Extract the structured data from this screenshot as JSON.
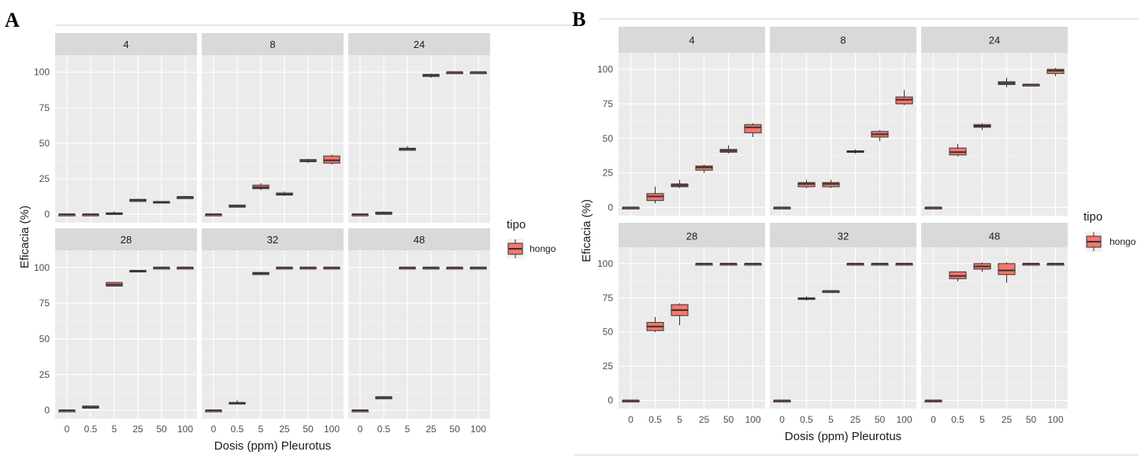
{
  "colors": {
    "fill": "#f8766d",
    "panel": "#ebebeb",
    "strip": "#d9d9d9"
  },
  "chart_data": [
    {
      "type": "boxplot",
      "panel_label": "A",
      "xlabel": "Dosis (ppm) Pleurotus",
      "ylabel": "Eficacia (%)",
      "categories": [
        "0",
        "0.5",
        "5",
        "25",
        "50",
        "100"
      ],
      "ylim": [
        -6,
        112
      ],
      "yticks": [
        0,
        25,
        50,
        75,
        100
      ],
      "grid": true,
      "legend": {
        "title": "tipo",
        "entries": [
          "hongo"
        ],
        "position": "right"
      },
      "facets": [
        {
          "label": "4",
          "boxes": [
            [
              0,
              0,
              0,
              0,
              0
            ],
            [
              0,
              0,
              0,
              0,
              0
            ],
            [
              0,
              0,
              0.5,
              1,
              2
            ],
            [
              9,
              9,
              10,
              10.5,
              11
            ],
            [
              8,
              8,
              8.5,
              9,
              9
            ],
            [
              11,
              11,
              12,
              12.5,
              13
            ]
          ]
        },
        {
          "label": "8",
          "boxes": [
            [
              0,
              0,
              0,
              0,
              0
            ],
            [
              5,
              5,
              5.5,
              6.5,
              7
            ],
            [
              17,
              18,
              19,
              20.5,
              22
            ],
            [
              13,
              13.5,
              14,
              15,
              16
            ],
            [
              36,
              37,
              37.5,
              38.5,
              39
            ],
            [
              35,
              36,
              38,
              41,
              42
            ]
          ]
        },
        {
          "label": "24",
          "boxes": [
            [
              0,
              0,
              0,
              0,
              0
            ],
            [
              0,
              0,
              0.5,
              1.5,
              2
            ],
            [
              45,
              45,
              46,
              46.5,
              48
            ],
            [
              96,
              97,
              97.5,
              98.5,
              99
            ],
            [
              100,
              100,
              100,
              100,
              100
            ],
            [
              100,
              100,
              100,
              100,
              100
            ]
          ]
        },
        {
          "label": "28",
          "boxes": [
            [
              0,
              0,
              0,
              0,
              0
            ],
            [
              1,
              1.5,
              2,
              3,
              3
            ],
            [
              87,
              87,
              88,
              89.5,
              90
            ],
            [
              97,
              97,
              97.5,
              98,
              98
            ],
            [
              100,
              100,
              100,
              100,
              100
            ],
            [
              100,
              100,
              100,
              100,
              100
            ]
          ]
        },
        {
          "label": "32",
          "boxes": [
            [
              0,
              0,
              0,
              0,
              0
            ],
            [
              4,
              4.5,
              5,
              5.5,
              7
            ],
            [
              95,
              95,
              96,
              96.5,
              97
            ],
            [
              100,
              100,
              100,
              100,
              100
            ],
            [
              100,
              100,
              100,
              100,
              100
            ],
            [
              100,
              100,
              100,
              100,
              100
            ]
          ]
        },
        {
          "label": "48",
          "boxes": [
            [
              0,
              0,
              0,
              0,
              0
            ],
            [
              8,
              8,
              9,
              9.5,
              10
            ],
            [
              100,
              100,
              100,
              100,
              100
            ],
            [
              100,
              100,
              100,
              100,
              100
            ],
            [
              100,
              100,
              100,
              100,
              100
            ],
            [
              100,
              100,
              100,
              100,
              100
            ]
          ]
        }
      ]
    },
    {
      "type": "boxplot",
      "panel_label": "B",
      "xlabel": "Dosis (ppm) Pleurotus",
      "ylabel": "Eficacia (%)",
      "categories": [
        "0",
        "0.5",
        "5",
        "25",
        "50",
        "100"
      ],
      "ylim": [
        -6,
        112
      ],
      "yticks": [
        0,
        25,
        50,
        75,
        100
      ],
      "grid": true,
      "legend": {
        "title": "tipo",
        "entries": [
          "hongo"
        ],
        "position": "right"
      },
      "facets": [
        {
          "label": "4",
          "boxes": [
            [
              0,
              0,
              0,
              0,
              0
            ],
            [
              3,
              5,
              8,
              10,
              15
            ],
            [
              14,
              15,
              16,
              17,
              20
            ],
            [
              25,
              27,
              29,
              30,
              31
            ],
            [
              39,
              40,
              41,
              42,
              45
            ],
            [
              51,
              54,
              58,
              60,
              61
            ]
          ]
        },
        {
          "label": "8",
          "boxes": [
            [
              0,
              0,
              0,
              0,
              0
            ],
            [
              14,
              15,
              17,
              18,
              20
            ],
            [
              14,
              15,
              17,
              18,
              20
            ],
            [
              39,
              40,
              40.5,
              41,
              42
            ],
            [
              48,
              51,
              53,
              55,
              56
            ],
            [
              74,
              75,
              78,
              80,
              85
            ]
          ]
        },
        {
          "label": "24",
          "boxes": [
            [
              0,
              0,
              0,
              0,
              0
            ],
            [
              37,
              38,
              40,
              43,
              46
            ],
            [
              56,
              58,
              59,
              60,
              61
            ],
            [
              87,
              89,
              90,
              91,
              94
            ],
            [
              89,
              89,
              89,
              89,
              89
            ],
            [
              95,
              97,
              99,
              100,
              101
            ]
          ]
        },
        {
          "label": "28",
          "boxes": [
            [
              0,
              0,
              0,
              0,
              0
            ],
            [
              50,
              51,
              54,
              57,
              61
            ],
            [
              55,
              62,
              66,
              70,
              71
            ],
            [
              100,
              100,
              100,
              100,
              100
            ],
            [
              100,
              100,
              100,
              100,
              100
            ],
            [
              100,
              100,
              100,
              100,
              100
            ]
          ]
        },
        {
          "label": "32",
          "boxes": [
            [
              0,
              0,
              0,
              0,
              0
            ],
            [
              73,
              74,
              74.5,
              75,
              76
            ],
            [
              80,
              80,
              80,
              80,
              80
            ],
            [
              100,
              100,
              100,
              100,
              100
            ],
            [
              100,
              100,
              100,
              100,
              100
            ],
            [
              100,
              100,
              100,
              100,
              100
            ]
          ]
        },
        {
          "label": "48",
          "boxes": [
            [
              0,
              0,
              0,
              0,
              0
            ],
            [
              87,
              89,
              91,
              94,
              94
            ],
            [
              94,
              96,
              98,
              100,
              101
            ],
            [
              86,
              92,
              95,
              100,
              101
            ],
            [
              100,
              100,
              100,
              100,
              100
            ],
            [
              100,
              100,
              100,
              100,
              100
            ]
          ]
        }
      ]
    }
  ]
}
